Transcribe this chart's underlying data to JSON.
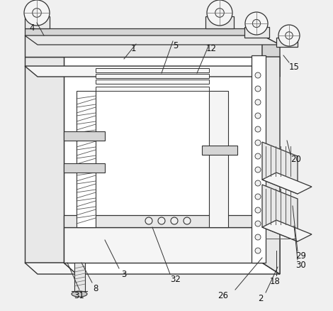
{
  "background_color": "#f0f0f0",
  "line_color": "#333333",
  "fig_width": 4.7,
  "fig_height": 4.39,
  "dpi": 100,
  "annotations": [
    [
      "31",
      112,
      22,
      112,
      30,
      95,
      68
    ],
    [
      "8",
      135,
      32,
      130,
      40,
      115,
      68
    ],
    [
      "3",
      175,
      52,
      168,
      60,
      148,
      100
    ],
    [
      "32",
      248,
      45,
      240,
      52,
      215,
      118
    ],
    [
      "26",
      315,
      22,
      332,
      30,
      370,
      75
    ],
    [
      "2",
      368,
      18,
      375,
      26,
      392,
      62
    ],
    [
      "18",
      388,
      42,
      390,
      50,
      390,
      85
    ],
    [
      "30",
      425,
      65,
      420,
      72,
      415,
      120
    ],
    [
      "29",
      425,
      78,
      420,
      84,
      413,
      148
    ],
    [
      "20",
      418,
      215,
      410,
      220,
      405,
      240
    ],
    [
      "15",
      415,
      345,
      408,
      350,
      400,
      360
    ],
    [
      "12",
      298,
      370,
      295,
      375,
      278,
      335
    ],
    [
      "5",
      248,
      374,
      244,
      380,
      228,
      335
    ],
    [
      "1",
      188,
      370,
      192,
      376,
      175,
      355
    ],
    [
      "4",
      45,
      400,
      52,
      406,
      62,
      388
    ]
  ]
}
